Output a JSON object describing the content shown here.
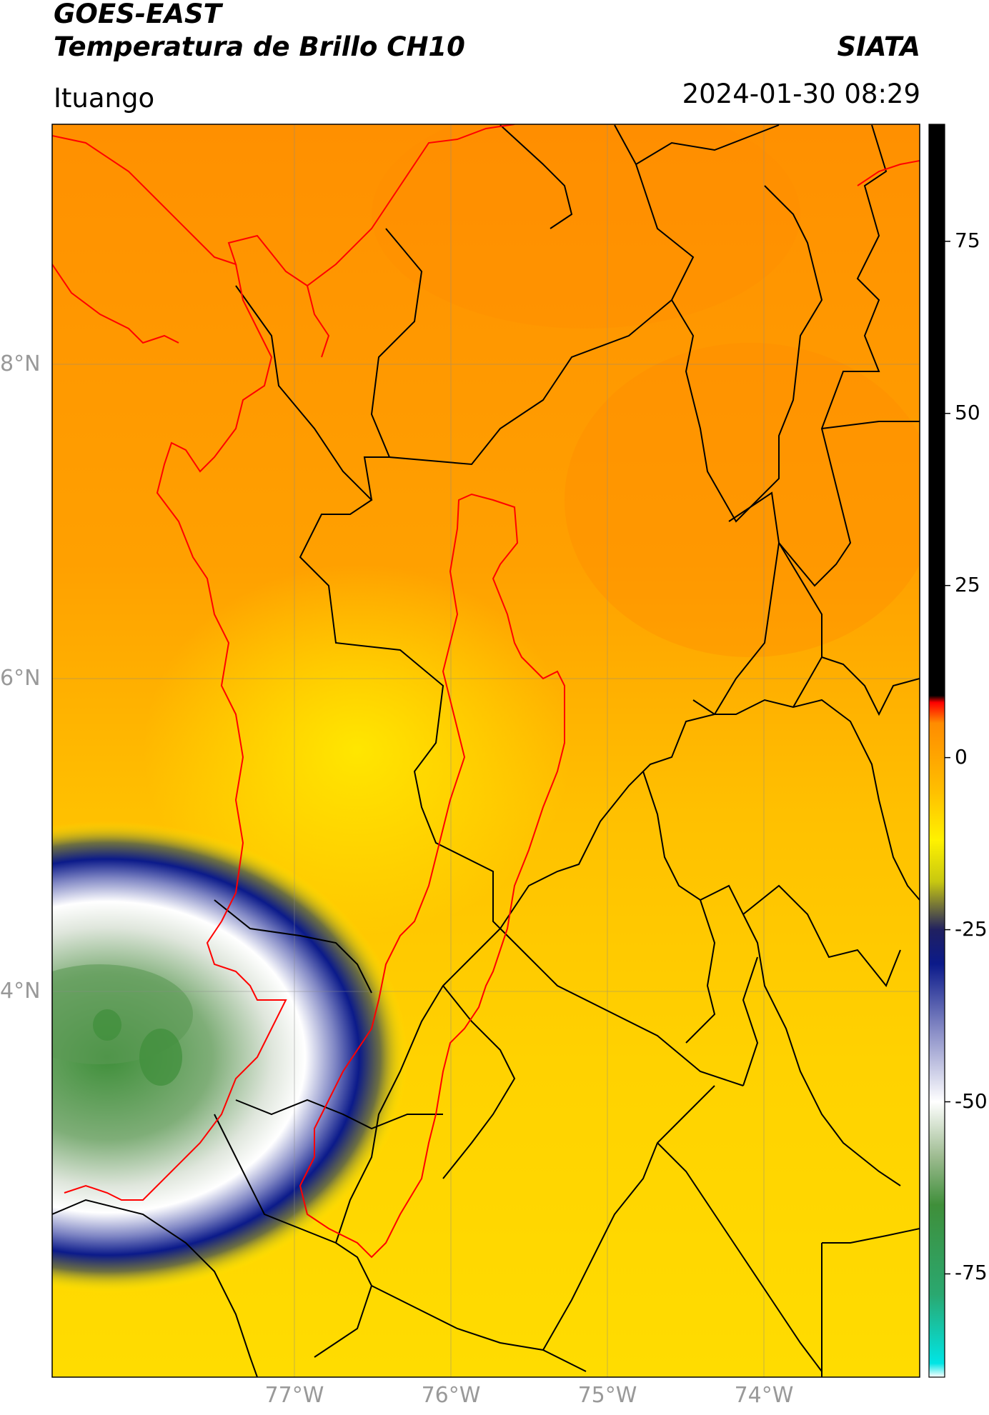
{
  "header": {
    "satellite": "GOES-EAST",
    "product": "Temperatura de Brillo CH10",
    "organization": "SIATA",
    "region": "Ituango",
    "datetime": "2024-01-30 08:29"
  },
  "map": {
    "lat_labels": [
      "8°N",
      "6°N",
      "4°N"
    ],
    "lon_labels": [
      "77°W",
      "76°W",
      "75°W",
      "74°W"
    ],
    "lon_range": [
      -78.55,
      -73.0
    ],
    "lat_range": [
      2.1,
      9.5
    ],
    "gridlines": true,
    "boundary_colors": {
      "countries_departments": "#000000",
      "coast_and_basin": "#ff0000"
    }
  },
  "colorbar": {
    "ticks": [
      "75",
      "50",
      "25",
      "0",
      "-25",
      "-50",
      "-75"
    ],
    "tick_values": [
      75,
      50,
      25,
      0,
      -25,
      -50,
      -75
    ],
    "range": [
      -90,
      92
    ],
    "stops": [
      {
        "value": -90,
        "color": "#ffffff"
      },
      {
        "value": -88,
        "color": "#00e5e5"
      },
      {
        "value": -78,
        "color": "#2aa870"
      },
      {
        "value": -65,
        "color": "#3f8f3a"
      },
      {
        "value": -58,
        "color": "#9dbb90"
      },
      {
        "value": -50,
        "color": "#ffffff"
      },
      {
        "value": -40,
        "color": "#8c90c8"
      },
      {
        "value": -30,
        "color": "#0b1a8a"
      },
      {
        "value": -25,
        "color": "#202060"
      },
      {
        "value": -18,
        "color": "#c8c810"
      },
      {
        "value": -12,
        "color": "#fff200"
      },
      {
        "value": -5,
        "color": "#ffc000"
      },
      {
        "value": 5,
        "color": "#ff8c00"
      },
      {
        "value": 8,
        "color": "#ff0000"
      },
      {
        "value": 9,
        "color": "#000000"
      },
      {
        "value": 92,
        "color": "#000000"
      }
    ]
  }
}
